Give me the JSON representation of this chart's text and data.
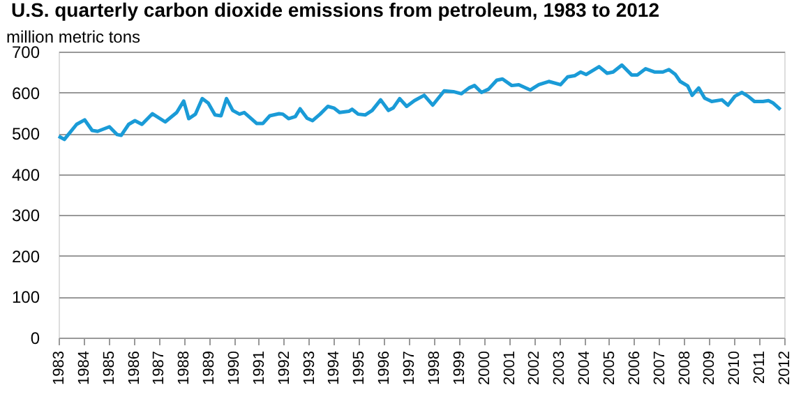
{
  "chart_data": {
    "type": "line",
    "title": "U.S. quarterly carbon dioxide emissions from petroleum, 1983 to 2012",
    "ylabel": "million metric tons",
    "x": [
      1983.0,
      1983.23,
      1983.72,
      1984.04,
      1984.34,
      1984.56,
      1985.03,
      1985.34,
      1985.5,
      1985.8,
      1986.05,
      1986.33,
      1986.75,
      1987.26,
      1987.72,
      1988.0,
      1988.2,
      1988.47,
      1988.74,
      1988.98,
      1989.25,
      1989.49,
      1989.71,
      1989.96,
      1990.23,
      1990.42,
      1990.7,
      1990.92,
      1991.16,
      1991.44,
      1991.81,
      1991.96,
      1992.19,
      1992.46,
      1992.65,
      1992.93,
      1993.15,
      1993.45,
      1993.76,
      1994.0,
      1994.23,
      1994.6,
      1994.73,
      1994.97,
      1995.25,
      1995.53,
      1995.87,
      1996.18,
      1996.37,
      1996.63,
      1996.91,
      1997.22,
      1997.61,
      1997.95,
      1998.41,
      1998.78,
      1999.1,
      1999.4,
      1999.62,
      1999.9,
      2000.18,
      2000.51,
      2000.74,
      2001.11,
      2001.39,
      2001.85,
      2002.19,
      2002.59,
      2003.06,
      2003.34,
      2003.62,
      2003.86,
      2004.08,
      2004.6,
      2004.92,
      2005.16,
      2005.51,
      2005.9,
      2006.13,
      2006.46,
      2006.83,
      2007.15,
      2007.39,
      2007.65,
      2007.84,
      2008.14,
      2008.32,
      2008.58,
      2008.82,
      2009.1,
      2009.51,
      2009.75,
      2010.03,
      2010.31,
      2010.55,
      2010.81,
      2011.15,
      2011.37,
      2011.56,
      2011.85
    ],
    "series": [
      {
        "color": "#1a9bd7",
        "values": [
          493,
          485,
          522,
          533,
          507,
          505,
          516,
          497,
          495,
          522,
          531,
          522,
          548,
          528,
          551,
          579,
          536,
          547,
          585,
          574,
          545,
          543,
          585,
          556,
          547,
          551,
          536,
          524,
          524,
          543,
          548,
          547,
          536,
          541,
          560,
          537,
          531,
          547,
          566,
          562,
          551,
          554,
          559,
          547,
          545,
          556,
          582,
          556,
          562,
          585,
          566,
          580,
          593,
          569,
          604,
          602,
          597,
          611,
          617,
          600,
          608,
          630,
          633,
          617,
          619,
          606,
          619,
          627,
          619,
          638,
          641,
          650,
          644,
          663,
          647,
          650,
          667,
          643,
          643,
          658,
          650,
          650,
          656,
          644,
          627,
          616,
          593,
          611,
          586,
          578,
          582,
          569,
          591,
          600,
          591,
          578,
          578,
          580,
          574,
          558
        ]
      }
    ],
    "xlim": [
      1983,
      2012
    ],
    "xticks": [
      1983,
      1984,
      1985,
      1986,
      1987,
      1988,
      1989,
      1990,
      1991,
      1992,
      1993,
      1994,
      1995,
      1996,
      1997,
      1998,
      1999,
      2000,
      2001,
      2002,
      2003,
      2004,
      2005,
      2006,
      2007,
      2008,
      2009,
      2010,
      2011,
      2012
    ],
    "ylim": [
      0,
      700
    ],
    "yticks": [
      0,
      100,
      200,
      300,
      400,
      500,
      600,
      700
    ],
    "grid": "y",
    "marker": "none",
    "line_style": "solid"
  }
}
